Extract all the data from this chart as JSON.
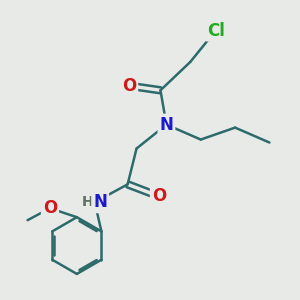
{
  "background_color": "#e8eae8",
  "atom_colors": {
    "C": "#2d6b6b",
    "N": "#1a1acc",
    "O": "#cc1a1a",
    "Cl": "#22aa22",
    "H": "#607060"
  },
  "bond_color": "#2d6b6b",
  "bond_width": 1.8,
  "font_size_atom": 11,
  "figsize": [
    3.0,
    3.0
  ],
  "dpi": 100
}
